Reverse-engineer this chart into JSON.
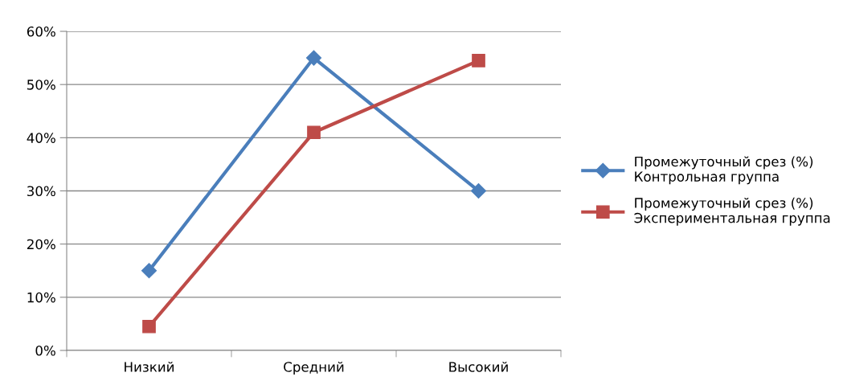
{
  "chart_data": {
    "type": "line",
    "categories": [
      "Низкий",
      "Средний",
      "Высокий"
    ],
    "series": [
      {
        "name": "Промежуточный срез (%)\nКонтрольная группа",
        "color": "#4a7ebb",
        "marker": "diamond",
        "values": [
          15,
          55,
          30
        ]
      },
      {
        "name": "Промежуточный срез (%)\nЭкспериментальная группа",
        "color": "#be4b48",
        "marker": "square",
        "values": [
          4.5,
          41,
          54.5
        ]
      }
    ],
    "ylim": [
      0,
      60
    ],
    "yticks": [
      {
        "value": 0,
        "label": "0%"
      },
      {
        "value": 10,
        "label": "10%"
      },
      {
        "value": 20,
        "label": "20%"
      },
      {
        "value": 30,
        "label": "30%"
      },
      {
        "value": 40,
        "label": "40%"
      },
      {
        "value": 50,
        "label": "50%"
      },
      {
        "value": 60,
        "label": "60%"
      }
    ],
    "grid": "y",
    "legend": "right",
    "line_style": "solid"
  }
}
